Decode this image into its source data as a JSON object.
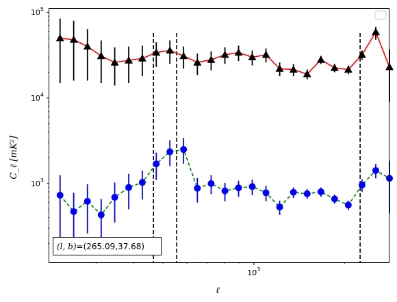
{
  "chart_data": {
    "type": "scatter",
    "xscale": "log",
    "yscale": "log",
    "xlim": [
      210,
      2800
    ],
    "ylim": [
      120,
      110000
    ],
    "xlabel": "ℓ",
    "ylabel": "C_ℓ  [mK²]",
    "x_tick_labels": [
      {
        "value": 1000,
        "mantissa": "10",
        "exp": "3"
      }
    ],
    "y_tick_labels": [
      {
        "value": 1000,
        "mantissa": "10",
        "exp": "3"
      },
      {
        "value": 10000,
        "mantissa": "10",
        "exp": "4"
      },
      {
        "value": 100000,
        "mantissa": "10",
        "exp": "5"
      }
    ],
    "grid": false,
    "legend": "top-right",
    "annotation": "(l,b)=(265.09,37.68)",
    "annotation_parts": {
      "lb": "(l, b)",
      "value": "=(265.09,37.68)"
    },
    "vlines": [
      465,
      555,
      2250
    ],
    "series": [
      {
        "color": "#000000",
        "line_color": "#ff0000",
        "line_style": "solid",
        "marker": "triangle",
        "points": [
          {
            "x": 228,
            "y": 50000,
            "lo": 15000,
            "hi": 85000
          },
          {
            "x": 253,
            "y": 48000,
            "lo": 16000,
            "hi": 80000
          },
          {
            "x": 281,
            "y": 40000,
            "lo": 16000,
            "hi": 64000
          },
          {
            "x": 312,
            "y": 31000,
            "lo": 15000,
            "hi": 47000
          },
          {
            "x": 346,
            "y": 26000,
            "lo": 14000,
            "hi": 39000
          },
          {
            "x": 385,
            "y": 27500,
            "lo": 15000,
            "hi": 40000
          },
          {
            "x": 427,
            "y": 29000,
            "lo": 18000,
            "hi": 41000
          },
          {
            "x": 475,
            "y": 34000,
            "lo": 23000,
            "hi": 45000
          },
          {
            "x": 527,
            "y": 36000,
            "lo": 25000,
            "hi": 47000
          },
          {
            "x": 585,
            "y": 31000,
            "lo": 22000,
            "hi": 40000
          },
          {
            "x": 650,
            "y": 26000,
            "lo": 18500,
            "hi": 33000
          },
          {
            "x": 722,
            "y": 28000,
            "lo": 21000,
            "hi": 35000
          },
          {
            "x": 802,
            "y": 32000,
            "lo": 25000,
            "hi": 39000
          },
          {
            "x": 890,
            "y": 34000,
            "lo": 27000,
            "hi": 41000
          },
          {
            "x": 988,
            "y": 30000,
            "lo": 24000,
            "hi": 36000
          },
          {
            "x": 1097,
            "y": 32000,
            "lo": 26000,
            "hi": 38000
          },
          {
            "x": 1218,
            "y": 22000,
            "lo": 18000,
            "hi": 26000
          },
          {
            "x": 1353,
            "y": 21500,
            "lo": 18000,
            "hi": 25000
          },
          {
            "x": 1502,
            "y": 19000,
            "lo": 16500,
            "hi": 21500
          },
          {
            "x": 1668,
            "y": 28000,
            "lo": 25000,
            "hi": 31000
          },
          {
            "x": 1852,
            "y": 22500,
            "lo": 20000,
            "hi": 25000
          },
          {
            "x": 2056,
            "y": 21500,
            "lo": 19000,
            "hi": 24000
          },
          {
            "x": 2283,
            "y": 32000,
            "lo": 28000,
            "hi": 36000
          },
          {
            "x": 2535,
            "y": 59000,
            "lo": 48000,
            "hi": 68000
          },
          {
            "x": 2815,
            "y": 23000,
            "lo": 9000,
            "hi": 37000
          }
        ]
      },
      {
        "color": "#0000ff",
        "line_color": "#008000",
        "line_style": "dashed",
        "marker": "circle",
        "points": [
          {
            "x": 228,
            "y": 730,
            "lo": 200,
            "hi": 1250
          },
          {
            "x": 253,
            "y": 470,
            "lo": 170,
            "hi": 780
          },
          {
            "x": 281,
            "y": 620,
            "lo": 260,
            "hi": 980
          },
          {
            "x": 312,
            "y": 430,
            "lo": 200,
            "hi": 660
          },
          {
            "x": 346,
            "y": 690,
            "lo": 350,
            "hi": 1030
          },
          {
            "x": 385,
            "y": 900,
            "lo": 500,
            "hi": 1300
          },
          {
            "x": 427,
            "y": 1030,
            "lo": 650,
            "hi": 1420
          },
          {
            "x": 475,
            "y": 1700,
            "lo": 1100,
            "hi": 2300
          },
          {
            "x": 527,
            "y": 2350,
            "lo": 1600,
            "hi": 3200
          },
          {
            "x": 585,
            "y": 2500,
            "lo": 1700,
            "hi": 3400
          },
          {
            "x": 650,
            "y": 880,
            "lo": 600,
            "hi": 1160
          },
          {
            "x": 722,
            "y": 1000,
            "lo": 750,
            "hi": 1250
          },
          {
            "x": 802,
            "y": 820,
            "lo": 620,
            "hi": 1020
          },
          {
            "x": 890,
            "y": 890,
            "lo": 700,
            "hi": 1080
          },
          {
            "x": 988,
            "y": 920,
            "lo": 730,
            "hi": 1110
          },
          {
            "x": 1097,
            "y": 780,
            "lo": 620,
            "hi": 940
          },
          {
            "x": 1218,
            "y": 530,
            "lo": 430,
            "hi": 630
          },
          {
            "x": 1353,
            "y": 790,
            "lo": 680,
            "hi": 900
          },
          {
            "x": 1502,
            "y": 760,
            "lo": 660,
            "hi": 860
          },
          {
            "x": 1668,
            "y": 800,
            "lo": 700,
            "hi": 900
          },
          {
            "x": 1852,
            "y": 660,
            "lo": 580,
            "hi": 740
          },
          {
            "x": 2056,
            "y": 560,
            "lo": 490,
            "hi": 630
          },
          {
            "x": 2283,
            "y": 960,
            "lo": 800,
            "hi": 1120
          },
          {
            "x": 2535,
            "y": 1420,
            "lo": 1150,
            "hi": 1690
          },
          {
            "x": 2815,
            "y": 1150,
            "lo": 450,
            "hi": 1850
          }
        ]
      }
    ]
  }
}
